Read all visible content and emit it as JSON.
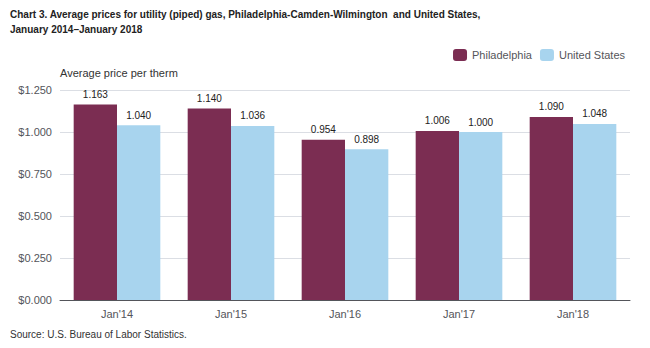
{
  "chart_data": {
    "type": "bar",
    "title": "Chart 3. Average prices for utility (piped) gas, Philadelphia-Camden-Wilmington  and United States,",
    "subtitle": "January 2014–January 2018",
    "y_label": "Average price per therm",
    "source": "Source: U.S. Bureau of Labor Statistics.",
    "categories": [
      "Jan'14",
      "Jan'15",
      "Jan'16",
      "Jan'17",
      "Jan'18"
    ],
    "series": [
      {
        "name": "Philadelphia",
        "color": "#7B2D52",
        "values": [
          1.163,
          1.14,
          0.954,
          1.006,
          1.09
        ],
        "value_labels": [
          "1.163",
          "1.140",
          "0.954",
          "1.006",
          "1.090"
        ]
      },
      {
        "name": "United States",
        "color": "#A8D4EE",
        "values": [
          1.04,
          1.036,
          0.898,
          1.0,
          1.048
        ],
        "value_labels": [
          "1.040",
          "1.036",
          "0.898",
          "1.000",
          "1.048"
        ]
      }
    ],
    "ylim": [
      0,
      1.25
    ],
    "yticks": [
      {
        "value": 0.0,
        "label": "$0.000"
      },
      {
        "value": 0.25,
        "label": "$0.250"
      },
      {
        "value": 0.5,
        "label": "$0.500"
      },
      {
        "value": 0.75,
        "label": "$0.750"
      },
      {
        "value": 1.0,
        "label": "$1.000"
      },
      {
        "value": 1.25,
        "label": "$1.250"
      }
    ],
    "grid": true,
    "legend": "upper right",
    "data_labels": true
  }
}
